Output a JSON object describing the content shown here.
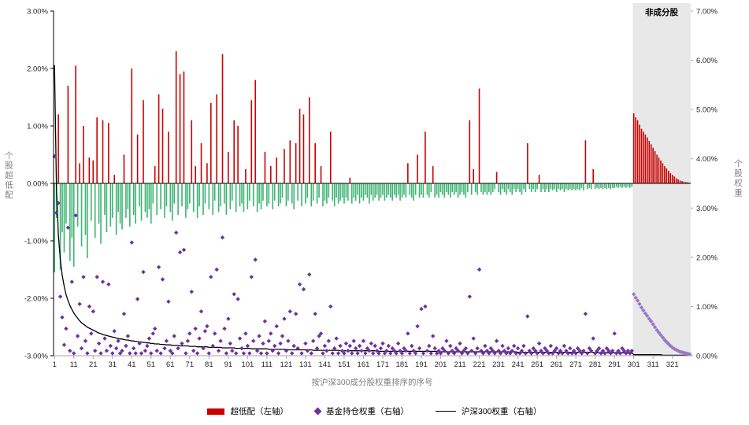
{
  "ui": {
    "left_axis_title": "个股超低配",
    "right_axis_title": "个股权重",
    "x_axis_title": "按沪深300成分股权重排序的序号",
    "non_constituent_label": "非成分股",
    "legend": [
      {
        "label": "超低配（左轴）",
        "marker": "bar"
      },
      {
        "label": "基金持仓权重（右轴）",
        "marker": "diamond"
      },
      {
        "label": "沪深300权重（右轴）",
        "marker": "line"
      }
    ]
  },
  "chart_data": {
    "type": "combo",
    "xlabel": "按沪深300成分股权重排序的序号",
    "x_ticks": [
      1,
      11,
      21,
      31,
      41,
      51,
      61,
      71,
      81,
      91,
      101,
      111,
      121,
      131,
      141,
      151,
      161,
      171,
      181,
      191,
      201,
      211,
      221,
      231,
      241,
      251,
      261,
      271,
      281,
      291,
      301,
      311,
      321
    ],
    "non_constituent_start_rank": 301,
    "non_constituent_label": "非成分股",
    "left_axis": {
      "label": "个股超低配",
      "min": -3,
      "max": 3,
      "ticks": [
        "3.00%",
        "2.00%",
        "1.00%",
        "0.00%",
        "-1.00%",
        "-2.00%",
        "-3.00%"
      ]
    },
    "right_axis": {
      "label": "个股权重",
      "min": 0,
      "max": 7,
      "ticks": [
        "7.00%",
        "6.00%",
        "5.00%",
        "4.00%",
        "3.00%",
        "2.00%",
        "1.00%",
        "0.00%"
      ]
    },
    "colors": {
      "overweight": "#cc0000",
      "underweight": "#3cb371",
      "fund_scatter": "#7030a0",
      "fund_scatter_non_constituent": "#9678c8",
      "index_line": "#000000",
      "region": "#e8e8e8"
    },
    "series": [
      {
        "name": "超低配（左轴）",
        "type": "bar",
        "axis": "left",
        "unit": "%",
        "values": [
          -1.55,
          -0.6,
          1.2,
          -1.5,
          -0.85,
          -1.2,
          -0.7,
          1.7,
          -1.35,
          -0.95,
          -1.45,
          2.05,
          -0.75,
          0.35,
          -1.1,
          1.0,
          -0.9,
          -1.3,
          0.45,
          -0.65,
          0.4,
          -0.95,
          1.15,
          -0.7,
          -1.05,
          1.1,
          -0.55,
          -0.85,
          1.05,
          -0.75,
          -0.6,
          0.15,
          -0.9,
          -0.5,
          -0.7,
          -0.8,
          0.5,
          -0.6,
          -0.45,
          -0.75,
          2.0,
          -0.55,
          -0.7,
          0.85,
          -0.4,
          -0.65,
          1.45,
          -0.5,
          -0.6,
          -0.45,
          -0.7,
          -0.35,
          0.3,
          -0.55,
          1.55,
          -0.45,
          1.3,
          -0.6,
          -0.4,
          0.9,
          -0.5,
          -0.65,
          -0.35,
          2.3,
          -0.55,
          1.9,
          -0.4,
          1.95,
          -0.6,
          -0.45,
          -0.35,
          1.1,
          -0.5,
          0.3,
          -0.6,
          -0.4,
          0.7,
          -0.55,
          -0.35,
          0.35,
          -0.45,
          1.4,
          -0.55,
          -0.3,
          1.55,
          -0.5,
          -0.4,
          2.25,
          -0.35,
          -0.55,
          0.55,
          -0.45,
          -0.3,
          1.1,
          -0.5,
          1.0,
          -0.4,
          -0.35,
          -0.5,
          0.25,
          -0.45,
          -0.3,
          1.45,
          -0.4,
          1.8,
          -0.5,
          -0.35,
          -0.45,
          -0.3,
          0.55,
          -0.4,
          -0.35,
          0.3,
          -0.45,
          -0.3,
          0.45,
          -0.4,
          -0.35,
          -0.25,
          0.6,
          -0.4,
          -0.3,
          0.75,
          -0.35,
          -0.45,
          0.7,
          -0.3,
          1.3,
          -0.4,
          1.2,
          -0.35,
          -0.25,
          1.5,
          -0.4,
          -0.3,
          0.7,
          -0.35,
          -0.25,
          0.3,
          -0.4,
          -0.3,
          -0.35,
          -0.25,
          0.9,
          -0.3,
          -0.4,
          -0.25,
          -0.35,
          -0.3,
          -0.25,
          -0.35,
          -0.25,
          -0.3,
          0.1,
          -0.35,
          -0.25,
          -0.3,
          -0.2,
          -0.35,
          -0.25,
          -0.3,
          -0.2,
          -0.25,
          -0.35,
          -0.2,
          -0.3,
          -0.25,
          -0.2,
          -0.3,
          -0.25,
          -0.2,
          -0.3,
          -0.25,
          -0.2,
          -0.25,
          -0.3,
          -0.2,
          -0.25,
          -0.2,
          -0.3,
          -0.25,
          -0.2,
          -0.25,
          0.35,
          -0.2,
          -0.25,
          -0.3,
          -0.2,
          0.5,
          -0.25,
          -0.2,
          -0.25,
          0.9,
          -0.2,
          -0.25,
          -0.15,
          0.3,
          -0.25,
          -0.2,
          -0.25,
          -0.15,
          -0.2,
          -0.25,
          -0.15,
          -0.2,
          -0.25,
          -0.15,
          -0.2,
          -0.15,
          -0.25,
          -0.2,
          -0.15,
          -0.2,
          -0.25,
          -0.15,
          1.1,
          -0.2,
          0.25,
          -0.15,
          -0.2,
          1.65,
          -0.15,
          -0.2,
          -0.15,
          -0.2,
          -0.15,
          -0.2,
          -0.15,
          -0.1,
          0.2,
          -0.15,
          -0.2,
          -0.1,
          -0.15,
          -0.2,
          -0.1,
          -0.15,
          -0.2,
          -0.1,
          -0.15,
          -0.1,
          -0.15,
          -0.2,
          -0.1,
          -0.15,
          0.7,
          -0.1,
          -0.15,
          -0.1,
          -0.15,
          -0.1,
          0.15,
          -0.15,
          -0.1,
          -0.15,
          -0.1,
          -0.15,
          -0.1,
          -0.12,
          -0.1,
          -0.15,
          -0.1,
          -0.12,
          -0.1,
          -0.15,
          -0.1,
          -0.12,
          -0.1,
          -0.12,
          -0.1,
          -0.12,
          -0.1,
          -0.12,
          -0.08,
          -0.12,
          0.75,
          -0.1,
          -0.08,
          -0.1,
          0.25,
          -0.1,
          -0.08,
          -0.1,
          -0.08,
          -0.1,
          -0.08,
          -0.1,
          -0.08,
          -0.1,
          -0.08,
          -0.08,
          -0.06,
          -0.08,
          -0.06,
          -0.08,
          -0.06,
          -0.08,
          -0.06,
          -0.08,
          -0.06,
          1.22,
          1.15,
          1.1,
          1.02,
          0.95,
          0.9,
          0.85,
          0.8,
          0.74,
          0.68,
          0.62,
          0.56,
          0.5,
          0.45,
          0.4,
          0.35,
          0.3,
          0.26,
          0.22,
          0.18,
          0.15,
          0.12,
          0.09,
          0.07,
          0.05,
          0.04,
          0.03,
          0.02,
          0.02,
          0.01
        ]
      },
      {
        "name": "基金持仓权重（右轴）",
        "type": "scatter",
        "axis": "right",
        "unit": "%",
        "values": [
          4.05,
          2.9,
          3.1,
          1.2,
          0.78,
          0.22,
          0.55,
          2.6,
          0.1,
          1.5,
          0.05,
          2.85,
          0.4,
          1.05,
          0.15,
          1.6,
          0.3,
          0.05,
          1.0,
          0.45,
          0.9,
          0.1,
          1.6,
          0.25,
          0.05,
          1.5,
          0.35,
          0.1,
          1.45,
          0.2,
          0.05,
          0.5,
          0.15,
          0.3,
          0.05,
          0.1,
          0.85,
          0.2,
          0.4,
          0.05,
          2.3,
          0.15,
          0.05,
          1.15,
          0.25,
          0.05,
          1.7,
          0.1,
          0.2,
          0.35,
          0.05,
          0.45,
          0.55,
          0.1,
          1.8,
          0.05,
          1.55,
          0.15,
          0.3,
          1.1,
          0.1,
          0.05,
          0.4,
          2.5,
          0.15,
          2.1,
          0.25,
          2.15,
          0.05,
          0.3,
          0.45,
          1.3,
          0.1,
          0.55,
          0.05,
          0.35,
          0.9,
          0.15,
          0.5,
          0.6,
          0.05,
          1.6,
          0.2,
          0.45,
          1.75,
          0.1,
          0.3,
          2.4,
          0.55,
          0.05,
          0.75,
          0.25,
          0.1,
          1.25,
          0.05,
          1.15,
          0.35,
          0.15,
          0.05,
          0.45,
          0.2,
          0.05,
          1.6,
          0.3,
          1.95,
          0.1,
          0.4,
          0.05,
          0.25,
          0.7,
          0.05,
          0.3,
          0.45,
          0.1,
          0.2,
          0.6,
          0.05,
          0.25,
          0.4,
          0.75,
          0.1,
          0.3,
          0.9,
          0.05,
          0.2,
          0.85,
          0.15,
          1.45,
          0.05,
          1.35,
          0.25,
          0.1,
          1.65,
          0.05,
          0.3,
          0.85,
          0.15,
          0.4,
          0.45,
          0.05,
          0.2,
          0.1,
          0.3,
          1.0,
          0.05,
          0.15,
          0.35,
          0.05,
          0.2,
          0.1,
          0.05,
          0.25,
          0.1,
          0.2,
          0.05,
          0.3,
          0.15,
          0.05,
          0.2,
          0.1,
          0.3,
          0.05,
          0.15,
          0.1,
          0.25,
          0.05,
          0.2,
          0.1,
          0.05,
          0.15,
          0.25,
          0.05,
          0.1,
          0.2,
          0.05,
          0.15,
          0.1,
          0.05,
          0.25,
          0.1,
          0.05,
          0.15,
          0.1,
          0.45,
          0.05,
          0.2,
          0.1,
          0.05,
          0.6,
          0.15,
          0.95,
          0.05,
          1.0,
          0.1,
          0.2,
          0.05,
          0.4,
          0.15,
          0.05,
          0.1,
          0.05,
          0.15,
          0.1,
          0.3,
          0.05,
          0.2,
          0.1,
          0.05,
          0.15,
          0.1,
          0.25,
          0.05,
          0.1,
          0.15,
          0.05,
          1.2,
          0.1,
          0.35,
          0.05,
          0.15,
          1.75,
          0.1,
          0.05,
          0.2,
          0.1,
          0.05,
          0.15,
          0.1,
          0.05,
          0.3,
          0.1,
          0.05,
          0.2,
          0.1,
          0.05,
          0.15,
          0.05,
          0.1,
          0.2,
          0.05,
          0.15,
          0.05,
          0.1,
          0.2,
          0.05,
          0.8,
          0.1,
          0.05,
          0.15,
          0.1,
          0.05,
          0.25,
          0.1,
          0.05,
          0.15,
          0.1,
          0.05,
          0.2,
          0.05,
          0.1,
          0.15,
          0.05,
          0.1,
          0.05,
          0.2,
          0.1,
          0.05,
          0.15,
          0.05,
          0.1,
          0.05,
          0.15,
          0.1,
          0.05,
          0.1,
          0.85,
          0.05,
          0.15,
          0.1,
          0.35,
          0.05,
          0.1,
          0.15,
          0.05,
          0.1,
          0.05,
          0.15,
          0.1,
          0.05,
          0.1,
          0.45,
          0.05,
          0.1,
          0.05,
          0.15,
          0.1,
          0.05,
          0.1,
          0.05,
          0.1,
          1.25,
          1.18,
          1.12,
          1.05,
          0.98,
          0.92,
          0.86,
          0.81,
          0.75,
          0.7,
          0.64,
          0.58,
          0.52,
          0.47,
          0.42,
          0.37,
          0.32,
          0.28,
          0.24,
          0.2,
          0.17,
          0.14,
          0.12,
          0.1,
          0.08,
          0.07,
          0.06,
          0.05,
          0.04,
          0.03
        ]
      },
      {
        "name": "沪深300权重（右轴）",
        "type": "line",
        "axis": "right",
        "unit": "%",
        "values": [
          5.9,
          3.39,
          2.45,
          1.95,
          1.63,
          1.41,
          1.24,
          1.12,
          1.02,
          0.94,
          0.87,
          0.81,
          0.76,
          0.71,
          0.67,
          0.64,
          0.61,
          0.58,
          0.56,
          0.54,
          0.52,
          0.5,
          0.48,
          0.46,
          0.45,
          0.43,
          0.42,
          0.41,
          0.4,
          0.39,
          0.38,
          0.37,
          0.36,
          0.35,
          0.34,
          0.34,
          0.33,
          0.32,
          0.32,
          0.31,
          0.3,
          0.3,
          0.29,
          0.29,
          0.28,
          0.28,
          0.27,
          0.27,
          0.26,
          0.26,
          0.25,
          0.25,
          0.24,
          0.24,
          0.24,
          0.23,
          0.23,
          0.23,
          0.22,
          0.22,
          0.22,
          0.21,
          0.21,
          0.21,
          0.21,
          0.2,
          0.2,
          0.2,
          0.2,
          0.2,
          0.19,
          0.19,
          0.19,
          0.19,
          0.18,
          0.18,
          0.18,
          0.18,
          0.18,
          0.18,
          0.17,
          0.17,
          0.17,
          0.17,
          0.17,
          0.17,
          0.17,
          0.16,
          0.16,
          0.16,
          0.16,
          0.16,
          0.16,
          0.16,
          0.15,
          0.15,
          0.15,
          0.15,
          0.15,
          0.15,
          0.15,
          0.15,
          0.14,
          0.14,
          0.14,
          0.14,
          0.14,
          0.14,
          0.14,
          0.14,
          0.14,
          0.13,
          0.13,
          0.13,
          0.13,
          0.13,
          0.13,
          0.13,
          0.13,
          0.13,
          0.13,
          0.12,
          0.12,
          0.12,
          0.12,
          0.12,
          0.12,
          0.12,
          0.12,
          0.12,
          0.12,
          0.12,
          0.12,
          0.12,
          0.11,
          0.11,
          0.11,
          0.11,
          0.11,
          0.11,
          0.11,
          0.11,
          0.11,
          0.11,
          0.11,
          0.11,
          0.11,
          0.11,
          0.1,
          0.1,
          0.1,
          0.1,
          0.1,
          0.1,
          0.1,
          0.1,
          0.1,
          0.1,
          0.1,
          0.1,
          0.1,
          0.1,
          0.1,
          0.1,
          0.1,
          0.1,
          0.1,
          0.09,
          0.09,
          0.09,
          0.09,
          0.09,
          0.09,
          0.09,
          0.09,
          0.09,
          0.09,
          0.09,
          0.09,
          0.09,
          0.09,
          0.09,
          0.09,
          0.09,
          0.09,
          0.09,
          0.09,
          0.09,
          0.09,
          0.09,
          0.09,
          0.09,
          0.09,
          0.09,
          0.09,
          0.09,
          0.09,
          0.09,
          0.09,
          0.09,
          0.08,
          0.08,
          0.08,
          0.08,
          0.08,
          0.08,
          0.08,
          0.08,
          0.08,
          0.08,
          0.08,
          0.08,
          0.08,
          0.08,
          0.08,
          0.08,
          0.08,
          0.08,
          0.08,
          0.08,
          0.08,
          0.08,
          0.08,
          0.08,
          0.08,
          0.08,
          0.08,
          0.08,
          0.08,
          0.08,
          0.08,
          0.08,
          0.08,
          0.08,
          0.08,
          0.08,
          0.08,
          0.08,
          0.08,
          0.08,
          0.07,
          0.07,
          0.07,
          0.07,
          0.07,
          0.07,
          0.07,
          0.07,
          0.07,
          0.07,
          0.07,
          0.07,
          0.07,
          0.07,
          0.07,
          0.07,
          0.07,
          0.07,
          0.07,
          0.07,
          0.07,
          0.07,
          0.07,
          0.07,
          0.07,
          0.07,
          0.07,
          0.07,
          0.07,
          0.07,
          0.07,
          0.07,
          0.07,
          0.07,
          0.07,
          0.07,
          0.07,
          0.07,
          0.07,
          0.07,
          0.06,
          0.06,
          0.06,
          0.06,
          0.06,
          0.06,
          0.06,
          0.06,
          0.06,
          0.06,
          0.06,
          0.06,
          0.06,
          0.06,
          0.06,
          0.06,
          0.06,
          0.06,
          0.06,
          0.06,
          0.02,
          0.02,
          0.02,
          0.02,
          0.02,
          0.02,
          0.02,
          0.02,
          0.02,
          0.02,
          0.02,
          0.02,
          0.02,
          0.02,
          0.02,
          0.01,
          0.01,
          0.01,
          0.01,
          0.01,
          0.01,
          0.01,
          0.01,
          0.01,
          0.01,
          0.01,
          0.01,
          0.01,
          0.01,
          0.01
        ]
      }
    ]
  }
}
